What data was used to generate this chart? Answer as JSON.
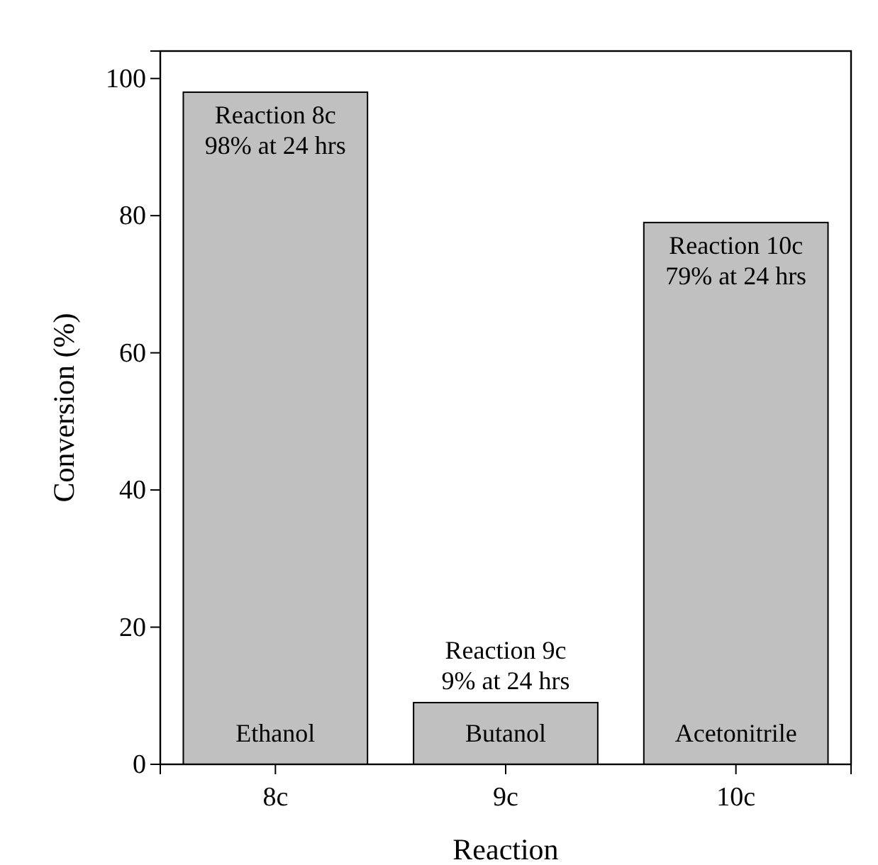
{
  "chart_data": {
    "type": "bar",
    "xlabel": "Reaction",
    "ylabel": "Conversion (%)",
    "categories": [
      "8c",
      "9c",
      "10c"
    ],
    "values": [
      98,
      9,
      79
    ],
    "color": "#c0c0c0",
    "ylim": [
      0,
      104
    ],
    "yticks": [
      0,
      20,
      40,
      60,
      80,
      100
    ],
    "grid": false,
    "value_labels": [
      "Reaction 8c\n98% at 24 hrs",
      "Reaction 9c\n9% at 24 hrs",
      "Reaction 10c\n79% at 24 hrs"
    ],
    "annotations": [
      "Ethanol",
      "Butanol",
      "Acetonitrile"
    ]
  }
}
